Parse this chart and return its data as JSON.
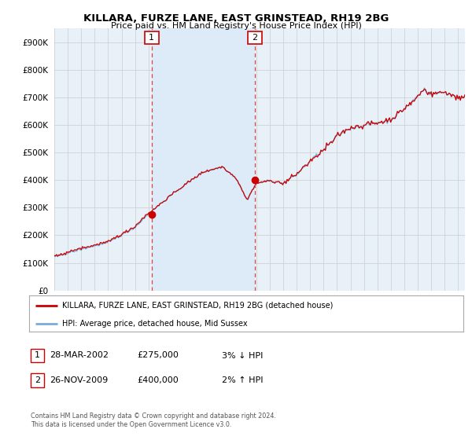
{
  "title": "KILLARA, FURZE LANE, EAST GRINSTEAD, RH19 2BG",
  "subtitle": "Price paid vs. HM Land Registry's House Price Index (HPI)",
  "ytick_values": [
    0,
    100000,
    200000,
    300000,
    400000,
    500000,
    600000,
    700000,
    800000,
    900000
  ],
  "ylim": [
    0,
    950000
  ],
  "xlim_start": 1995.0,
  "xlim_end": 2025.5,
  "plot_bg": "#e8f0f8",
  "fig_bg": "#ffffff",
  "grid_color": "#cccccc",
  "red_line_color": "#cc0000",
  "blue_line_color": "#7aabdb",
  "marker_line_color": "#dd4444",
  "highlight_color": "#ddeaf8",
  "sale1_x": 2002.22,
  "sale1_y": 275000,
  "sale2_x": 2009.9,
  "sale2_y": 400000,
  "legend_red_label": "KILLARA, FURZE LANE, EAST GRINSTEAD, RH19 2BG (detached house)",
  "legend_blue_label": "HPI: Average price, detached house, Mid Sussex",
  "transaction1_date": "28-MAR-2002",
  "transaction1_price": "£275,000",
  "transaction1_hpi": "3% ↓ HPI",
  "transaction2_date": "26-NOV-2009",
  "transaction2_price": "£400,000",
  "transaction2_hpi": "2% ↑ HPI",
  "footnote": "Contains HM Land Registry data © Crown copyright and database right 2024.\nThis data is licensed under the Open Government Licence v3.0."
}
